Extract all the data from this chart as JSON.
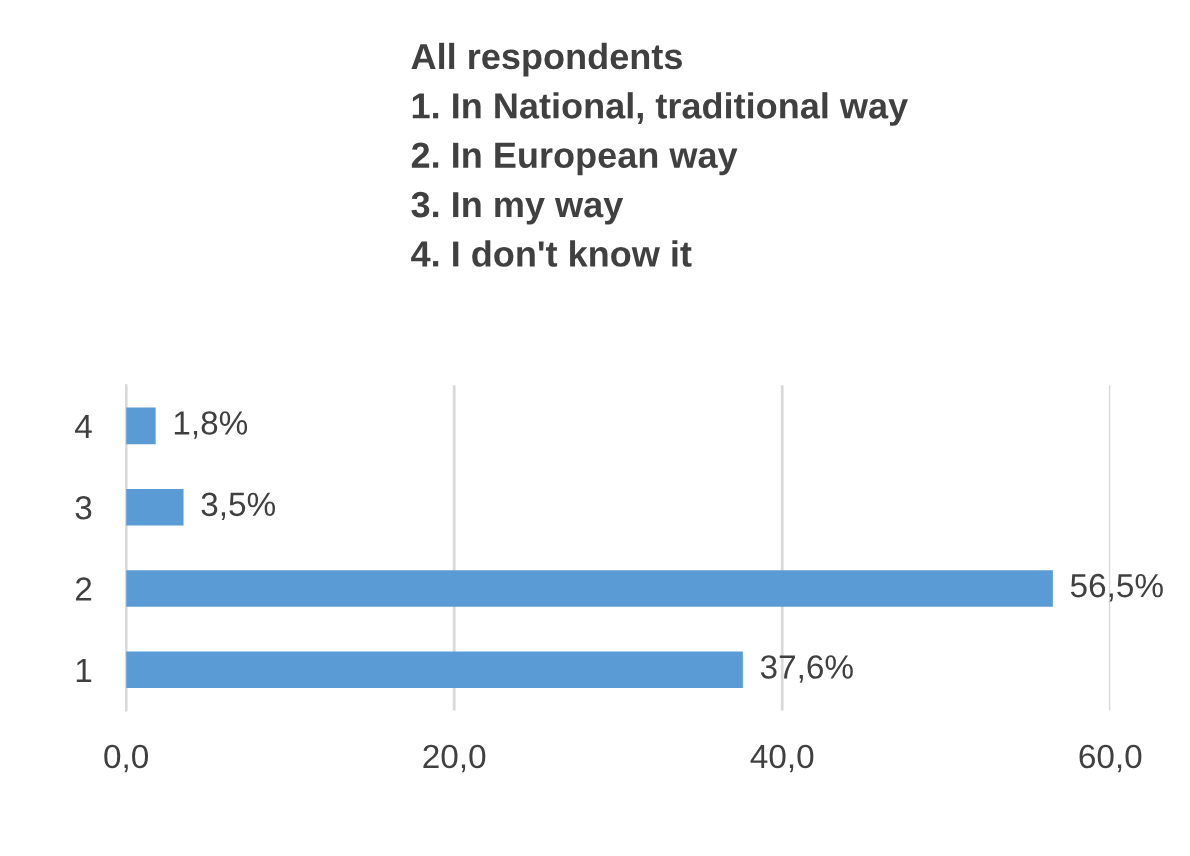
{
  "chart_data": {
    "type": "bar",
    "orientation": "horizontal",
    "title": "All respondents\n1. In National, traditional way\n2. In European way\n3. In my way\n4. I don't know it",
    "categories": [
      "4",
      "3",
      "2",
      "1"
    ],
    "values": [
      1.8,
      3.5,
      56.5,
      37.6
    ],
    "value_labels": [
      "1,8%",
      "3,5%",
      "56,5%",
      "37,6%"
    ],
    "color": "#5b9bd5",
    "xlim": [
      0,
      60
    ],
    "xticks": [
      {
        "value": 0,
        "label": "0,0"
      },
      {
        "value": 20,
        "label": "20,0"
      },
      {
        "value": 40,
        "label": "40,0"
      },
      {
        "value": 60,
        "label": "60,0"
      }
    ],
    "grid": "x",
    "legend": false
  }
}
